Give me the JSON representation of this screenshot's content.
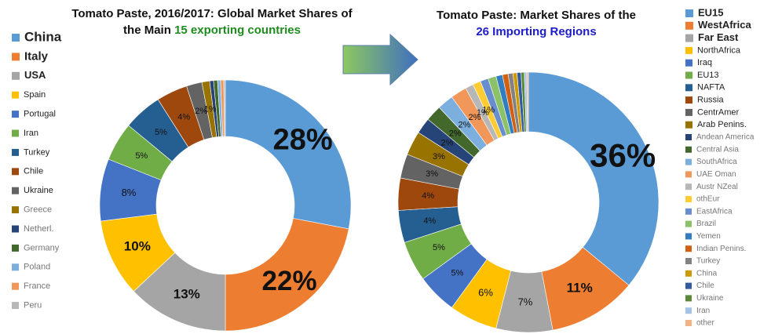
{
  "chart_data": [
    {
      "type": "pie",
      "title_lines": [
        "Tomato Paste, 2016/2017: Global Market Shares of",
        "the Main"
      ],
      "title_highlight": "15 exporting countries",
      "title_highlight_color": "#1e8c1e",
      "categories": [
        "China",
        "Italy",
        "USA",
        "Spain",
        "Portugal",
        "Iran",
        "Turkey",
        "Chile",
        "Ukraine",
        "Greece",
        "Netherl.",
        "Germany",
        "Poland",
        "France",
        "Peru"
      ],
      "values": [
        28,
        22,
        13,
        10,
        8,
        5,
        5,
        4,
        2,
        1,
        0.5,
        0.5,
        0.4,
        0.4,
        0.2
      ],
      "value_labels": [
        "28%",
        "22%",
        "13%",
        "10%",
        "8%",
        "5%",
        "5%",
        "4%",
        "2%",
        "1%",
        null,
        null,
        null,
        null,
        null
      ],
      "colors": [
        "#5b9bd5",
        "#ed7d31",
        "#a5a5a5",
        "#ffc000",
        "#4472c4",
        "#70ad47",
        "#255e91",
        "#9e480e",
        "#636363",
        "#997300",
        "#264478",
        "#43682b",
        "#7cafdd",
        "#f1975a",
        "#b7b7b7"
      ]
    },
    {
      "type": "pie",
      "title_lines": [
        "Tomato Paste: Market Shares of the",
        ""
      ],
      "title_highlight": "26 Importing Regions",
      "title_highlight_color": "#1c1cc8",
      "categories": [
        "EU15",
        "WestAfrica",
        "Far East",
        "NorthAfrica",
        "Iraq",
        "EU13",
        "NAFTA",
        "Russia",
        "CentrAmer",
        "Arab Penins.",
        "Andean America",
        "Central Asia",
        "SouthAfrica",
        "UAE Oman",
        "Austr NZeal",
        "othEur",
        "EastAfrica",
        "Brazil",
        "Yemen",
        "Indian Penins.",
        "Turkey",
        "China",
        "Chile",
        "Ukraine",
        "Iran",
        "other"
      ],
      "values": [
        36,
        11,
        7,
        6,
        5,
        5,
        4,
        4,
        3,
        3,
        2,
        2,
        2,
        2,
        1,
        1,
        1,
        1,
        0.8,
        0.7,
        0.6,
        0.5,
        0.5,
        0.4,
        0.3,
        0.2
      ],
      "value_labels": [
        "36%",
        "11%",
        "7%",
        "6%",
        "5%",
        "5%",
        "4%",
        "4%",
        "3%",
        "3%",
        "2%",
        "2%",
        "2%",
        "2%",
        "1%",
        "1%",
        null,
        null,
        null,
        null,
        null,
        null,
        null,
        null,
        null,
        null
      ],
      "colors": [
        "#5b9bd5",
        "#ed7d31",
        "#a5a5a5",
        "#ffc000",
        "#4472c4",
        "#70ad47",
        "#255e91",
        "#9e480e",
        "#636363",
        "#997300",
        "#264478",
        "#43682b",
        "#7cafdd",
        "#f1975a",
        "#b7b7b7",
        "#ffcd33",
        "#698ed0",
        "#8cc168",
        "#327dc2",
        "#d26012",
        "#828282",
        "#cc9a00",
        "#335aa1",
        "#5a8a39",
        "#a3c4e6",
        "#f4b183"
      ]
    }
  ]
}
